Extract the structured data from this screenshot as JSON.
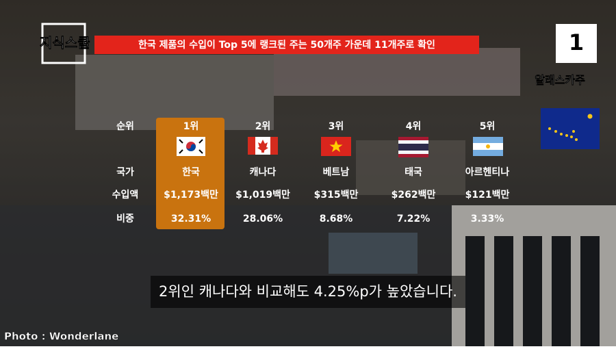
{
  "logo": "지식스쿨",
  "headline": "한국 제품의 수입이 Top 5에 랭크된 주는 50개주 가운데 11개주로 확인",
  "badge": "1",
  "state": "알래스카주",
  "table": {
    "row_labels": [
      "순위",
      "국가",
      "수입액",
      "비중"
    ],
    "columns": [
      {
        "rank": "1위",
        "country": "한국",
        "amount": "$1,173백만",
        "share": "32.31%"
      },
      {
        "rank": "2위",
        "country": "캐나다",
        "amount": "$1,019백만",
        "share": "28.06%"
      },
      {
        "rank": "3위",
        "country": "베트남",
        "amount": "$315백만",
        "share": "8.68%"
      },
      {
        "rank": "4위",
        "country": "태국",
        "amount": "$262백만",
        "share": "7.22%"
      },
      {
        "rank": "5위",
        "country": "아르헨티나",
        "amount": "$121백만",
        "share": "3.33%"
      }
    ]
  },
  "subtitle": "2위인 캐나다와 비교해도 4.25%p가 높았습니다.",
  "credit": "Photo : Wonderlane"
}
